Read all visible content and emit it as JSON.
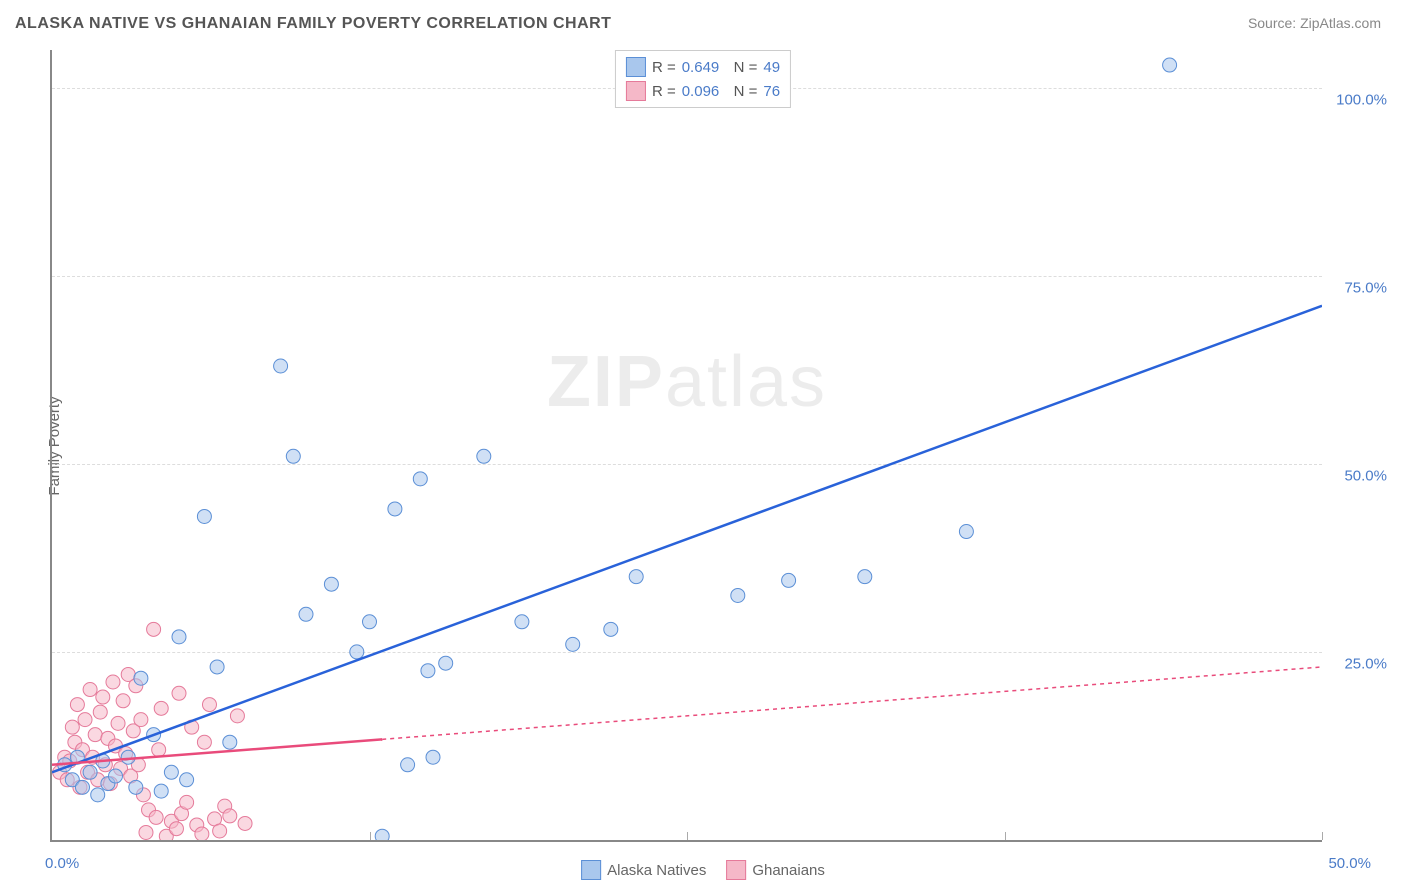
{
  "title": "ALASKA NATIVE VS GHANAIAN FAMILY POVERTY CORRELATION CHART",
  "source": "Source: ZipAtlas.com",
  "y_axis_label": "Family Poverty",
  "watermark": {
    "part1": "ZIP",
    "part2": "atlas"
  },
  "chart": {
    "type": "scatter",
    "xlim": [
      0,
      50
    ],
    "ylim": [
      0,
      105
    ],
    "x_ticks": [
      0,
      12.5,
      25,
      37.5,
      50
    ],
    "x_tick_labels": [
      "0.0%",
      "",
      "",
      "",
      "50.0%"
    ],
    "y_ticks": [
      25,
      50,
      75,
      100
    ],
    "y_tick_labels": [
      "25.0%",
      "50.0%",
      "75.0%",
      "100.0%"
    ],
    "grid_color": "#dddddd",
    "background_color": "#ffffff",
    "marker_radius": 7,
    "marker_opacity": 0.55,
    "line_width": 2.5,
    "series": [
      {
        "name": "Alaska Natives",
        "color_fill": "#a9c7ed",
        "color_stroke": "#5b8fd6",
        "line_color": "#2962d9",
        "line_dash": "none",
        "R": "0.649",
        "N": "49",
        "trend": {
          "x1": 0,
          "y1": 9,
          "x2": 50,
          "y2": 71
        },
        "trend_solid_until_x": 50,
        "points": [
          [
            0.5,
            10
          ],
          [
            0.8,
            8
          ],
          [
            1,
            11
          ],
          [
            1.2,
            7
          ],
          [
            1.5,
            9
          ],
          [
            1.8,
            6
          ],
          [
            2,
            10.5
          ],
          [
            2.2,
            7.5
          ],
          [
            2.5,
            8.5
          ],
          [
            3,
            11
          ],
          [
            3.3,
            7
          ],
          [
            3.5,
            21.5
          ],
          [
            4,
            14
          ],
          [
            4.3,
            6.5
          ],
          [
            4.7,
            9
          ],
          [
            5,
            27
          ],
          [
            5.3,
            8
          ],
          [
            6,
            43
          ],
          [
            6.5,
            23
          ],
          [
            7,
            13
          ],
          [
            9,
            63
          ],
          [
            9.5,
            51
          ],
          [
            10,
            30
          ],
          [
            11,
            34
          ],
          [
            12,
            25
          ],
          [
            12.5,
            29
          ],
          [
            13,
            0.5
          ],
          [
            13.5,
            44
          ],
          [
            14,
            10
          ],
          [
            14.5,
            48
          ],
          [
            14.8,
            22.5
          ],
          [
            15,
            11
          ],
          [
            15.5,
            23.5
          ],
          [
            17,
            51
          ],
          [
            18.5,
            29
          ],
          [
            20.5,
            26
          ],
          [
            22,
            28
          ],
          [
            23,
            35
          ],
          [
            27,
            32.5
          ],
          [
            29,
            34.5
          ],
          [
            32,
            35
          ],
          [
            36,
            41
          ],
          [
            44,
            103
          ]
        ]
      },
      {
        "name": "Ghanaians",
        "color_fill": "#f5b8c8",
        "color_stroke": "#e57a9a",
        "line_color": "#e94b7b",
        "line_dash": "4,4",
        "R": "0.096",
        "N": "76",
        "trend": {
          "x1": 0,
          "y1": 10,
          "x2": 50,
          "y2": 23
        },
        "trend_solid_until_x": 13,
        "points": [
          [
            0.3,
            9
          ],
          [
            0.5,
            11
          ],
          [
            0.6,
            8
          ],
          [
            0.7,
            10.5
          ],
          [
            0.8,
            15
          ],
          [
            0.9,
            13
          ],
          [
            1,
            18
          ],
          [
            1.1,
            7
          ],
          [
            1.2,
            12
          ],
          [
            1.3,
            16
          ],
          [
            1.4,
            9
          ],
          [
            1.5,
            20
          ],
          [
            1.6,
            11
          ],
          [
            1.7,
            14
          ],
          [
            1.8,
            8
          ],
          [
            1.9,
            17
          ],
          [
            2,
            19
          ],
          [
            2.1,
            10
          ],
          [
            2.2,
            13.5
          ],
          [
            2.3,
            7.5
          ],
          [
            2.4,
            21
          ],
          [
            2.5,
            12.5
          ],
          [
            2.6,
            15.5
          ],
          [
            2.7,
            9.5
          ],
          [
            2.8,
            18.5
          ],
          [
            2.9,
            11.5
          ],
          [
            3,
            22
          ],
          [
            3.1,
            8.5
          ],
          [
            3.2,
            14.5
          ],
          [
            3.3,
            20.5
          ],
          [
            3.4,
            10
          ],
          [
            3.5,
            16
          ],
          [
            3.6,
            6
          ],
          [
            3.7,
            1
          ],
          [
            3.8,
            4
          ],
          [
            4,
            28
          ],
          [
            4.1,
            3
          ],
          [
            4.2,
            12
          ],
          [
            4.3,
            17.5
          ],
          [
            4.5,
            0.5
          ],
          [
            4.7,
            2.5
          ],
          [
            4.9,
            1.5
          ],
          [
            5,
            19.5
          ],
          [
            5.1,
            3.5
          ],
          [
            5.3,
            5
          ],
          [
            5.5,
            15
          ],
          [
            5.7,
            2
          ],
          [
            5.9,
            0.8
          ],
          [
            6,
            13
          ],
          [
            6.2,
            18
          ],
          [
            6.4,
            2.8
          ],
          [
            6.6,
            1.2
          ],
          [
            6.8,
            4.5
          ],
          [
            7,
            3.2
          ],
          [
            7.3,
            16.5
          ],
          [
            7.6,
            2.2
          ]
        ]
      }
    ]
  },
  "legend_top": [
    {
      "swatch_fill": "#a9c7ed",
      "swatch_stroke": "#5b8fd6",
      "R": "0.649",
      "N": "49"
    },
    {
      "swatch_fill": "#f5b8c8",
      "swatch_stroke": "#e57a9a",
      "R": "0.096",
      "N": "76"
    }
  ],
  "legend_bottom": [
    {
      "swatch_fill": "#a9c7ed",
      "swatch_stroke": "#5b8fd6",
      "label": "Alaska Natives"
    },
    {
      "swatch_fill": "#f5b8c8",
      "swatch_stroke": "#e57a9a",
      "label": "Ghanaians"
    }
  ]
}
